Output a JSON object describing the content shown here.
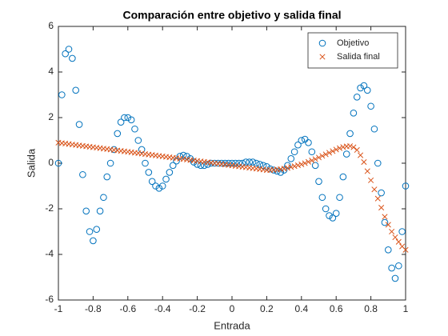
{
  "chart_data": {
    "type": "scatter",
    "title": "Comparación entre objetivo y salida final",
    "xlabel": "Entrada",
    "ylabel": "Salida",
    "x": [
      -1,
      -0.98,
      -0.96,
      -0.94,
      -0.92,
      -0.9,
      -0.88,
      -0.86,
      -0.84,
      -0.82,
      -0.8,
      -0.78,
      -0.76,
      -0.74,
      -0.72,
      -0.7,
      -0.68,
      -0.66,
      -0.64,
      -0.62,
      -0.6,
      -0.58,
      -0.56,
      -0.54,
      -0.52,
      -0.5,
      -0.48,
      -0.46,
      -0.44,
      -0.42,
      -0.4,
      -0.38,
      -0.36,
      -0.34,
      -0.32,
      -0.3,
      -0.28,
      -0.26,
      -0.24,
      -0.22,
      -0.2,
      -0.18,
      -0.16,
      -0.14,
      -0.12,
      -0.1,
      -0.08,
      -0.06,
      -0.04,
      -0.02,
      0,
      0.02,
      0.04,
      0.06,
      0.08,
      0.1,
      0.12,
      0.14,
      0.16,
      0.18,
      0.2,
      0.22,
      0.24,
      0.26,
      0.28,
      0.3,
      0.32,
      0.34,
      0.36,
      0.38,
      0.4,
      0.42,
      0.44,
      0.46,
      0.48,
      0.5,
      0.52,
      0.54,
      0.56,
      0.58,
      0.6,
      0.62,
      0.64,
      0.66,
      0.68,
      0.7,
      0.72,
      0.74,
      0.76,
      0.78,
      0.8,
      0.82,
      0.84,
      0.86,
      0.88,
      0.9,
      0.92,
      0.94,
      0.96,
      0.98,
      1
    ],
    "series": [
      {
        "name": "Objetivo",
        "marker": "o",
        "color": "#0072bd",
        "values": [
          0,
          3,
          4.8,
          5,
          4.6,
          3.2,
          1.7,
          -0.5,
          -2.1,
          -3,
          -3.4,
          -2.9,
          -2.1,
          -1.5,
          -0.6,
          0,
          0.6,
          1.3,
          1.8,
          2,
          2,
          1.9,
          1.5,
          1,
          0.6,
          0,
          -0.4,
          -0.8,
          -1,
          -1.1,
          -1,
          -0.7,
          -0.4,
          -0.1,
          0.1,
          0.3,
          0.35,
          0.3,
          0.2,
          0.05,
          -0.05,
          -0.1,
          -0.1,
          -0.05,
          0,
          0,
          0,
          0,
          0,
          0,
          0,
          0,
          0,
          0,
          0.05,
          0.05,
          0.05,
          0,
          -0.05,
          -0.1,
          -0.15,
          -0.25,
          -0.3,
          -0.35,
          -0.4,
          -0.3,
          -0.1,
          0.2,
          0.5,
          0.8,
          1,
          1.05,
          0.9,
          0.5,
          -0.1,
          -0.8,
          -1.5,
          -2,
          -2.3,
          -2.4,
          -2.2,
          -1.5,
          -0.6,
          0.4,
          1.3,
          2.2,
          2.9,
          3.3,
          3.4,
          3.2,
          2.5,
          1.5,
          0,
          -1.3,
          -2.6,
          -3.8,
          -4.6,
          -5.05,
          -4.5,
          -3,
          -1
        ]
      },
      {
        "name": "Salida final",
        "marker": "x",
        "color": "#d95319",
        "values": [
          0.9,
          0.88,
          0.86,
          0.84,
          0.82,
          0.8,
          0.78,
          0.76,
          0.74,
          0.72,
          0.7,
          0.68,
          0.66,
          0.64,
          0.62,
          0.6,
          0.58,
          0.56,
          0.54,
          0.52,
          0.5,
          0.48,
          0.46,
          0.44,
          0.42,
          0.4,
          0.38,
          0.36,
          0.34,
          0.32,
          0.3,
          0.28,
          0.26,
          0.24,
          0.22,
          0.2,
          0.18,
          0.16,
          0.14,
          0.12,
          0.1,
          0.08,
          0.06,
          0.04,
          0.02,
          0,
          -0.02,
          -0.04,
          -0.06,
          -0.08,
          -0.1,
          -0.12,
          -0.14,
          -0.16,
          -0.18,
          -0.2,
          -0.22,
          -0.24,
          -0.26,
          -0.28,
          -0.3,
          -0.3,
          -0.29,
          -0.28,
          -0.26,
          -0.24,
          -0.21,
          -0.17,
          -0.13,
          -0.09,
          -0.05,
          0,
          0.06,
          0.12,
          0.18,
          0.25,
          0.32,
          0.39,
          0.46,
          0.53,
          0.6,
          0.66,
          0.71,
          0.74,
          0.75,
          0.7,
          0.58,
          0.35,
          0.05,
          -0.35,
          -0.75,
          -1.15,
          -1.55,
          -1.95,
          -2.35,
          -2.7,
          -3,
          -3.25,
          -3.45,
          -3.65,
          -3.8
        ]
      }
    ],
    "xlim": [
      -1,
      1
    ],
    "xticks": [
      -1,
      -0.8,
      -0.6,
      -0.4,
      -0.2,
      0,
      0.2,
      0.4,
      0.6,
      0.8,
      1
    ],
    "ylim": [
      -6,
      6
    ],
    "yticks": [
      -6,
      -4,
      -2,
      0,
      2,
      4,
      6
    ],
    "grid": false,
    "legend": "northeast"
  }
}
